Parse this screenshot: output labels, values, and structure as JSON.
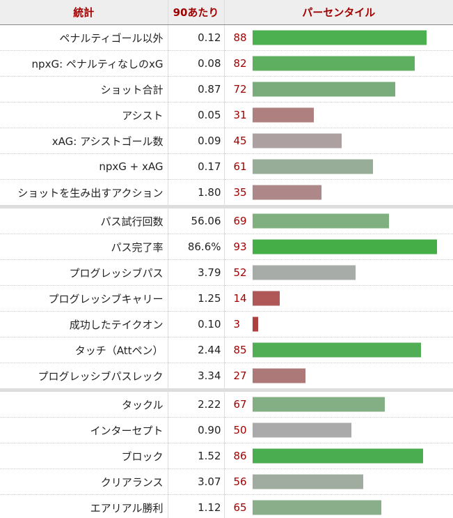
{
  "header": {
    "stat": "統計",
    "per90": "90あたり",
    "percentile": "パーセンタイル"
  },
  "rows": [
    {
      "stat": "ペナルティゴール以外",
      "per90": "0.12",
      "percentile": 88,
      "color": "#4caf50"
    },
    {
      "stat": "npxG: ペナルティなしのxG",
      "per90": "0.08",
      "percentile": 82,
      "color": "#5faf60"
    },
    {
      "stat": "ショット合計",
      "per90": "0.87",
      "percentile": 72,
      "color": "#7aab7a"
    },
    {
      "stat": "アシスト",
      "per90": "0.05",
      "percentile": 31,
      "color": "#ae8080"
    },
    {
      "stat": "xAG: アシストゴール数",
      "per90": "0.09",
      "percentile": 45,
      "color": "#ada0a0"
    },
    {
      "stat": "npxG + xAG",
      "per90": "0.17",
      "percentile": 61,
      "color": "#97ad97"
    },
    {
      "stat": "ショットを生み出すアクション",
      "per90": "1.80",
      "percentile": 35,
      "color": "#ae8888",
      "sep": true
    },
    {
      "stat": "パス試行回数",
      "per90": "56.06",
      "percentile": 69,
      "color": "#80b080"
    },
    {
      "stat": "パス完了率",
      "per90": "86.6%",
      "percentile": 93,
      "color": "#45ae47"
    },
    {
      "stat": "プログレッシブパス",
      "per90": "3.79",
      "percentile": 52,
      "color": "#a8aca8"
    },
    {
      "stat": "プログレッシブキャリー",
      "per90": "1.25",
      "percentile": 14,
      "color": "#b05858"
    },
    {
      "stat": "成功したテイクオン",
      "per90": "0.10",
      "percentile": 3,
      "color": "#b04040"
    },
    {
      "stat": "タッチ（Attペン）",
      "per90": "2.44",
      "percentile": 85,
      "color": "#52ae55"
    },
    {
      "stat": "プログレッシブパスレック",
      "per90": "3.34",
      "percentile": 27,
      "color": "#ad7878",
      "sep": true
    },
    {
      "stat": "タックル",
      "per90": "2.22",
      "percentile": 67,
      "color": "#84ae84"
    },
    {
      "stat": "インターセプト",
      "per90": "0.90",
      "percentile": 50,
      "color": "#aaaaaa"
    },
    {
      "stat": "ブロック",
      "per90": "1.52",
      "percentile": 86,
      "color": "#4aae50"
    },
    {
      "stat": "クリアランス",
      "per90": "3.07",
      "percentile": 56,
      "color": "#a0aca0"
    },
    {
      "stat": "エアリアル勝利",
      "per90": "1.12",
      "percentile": 65,
      "color": "#8aae8a"
    }
  ]
}
